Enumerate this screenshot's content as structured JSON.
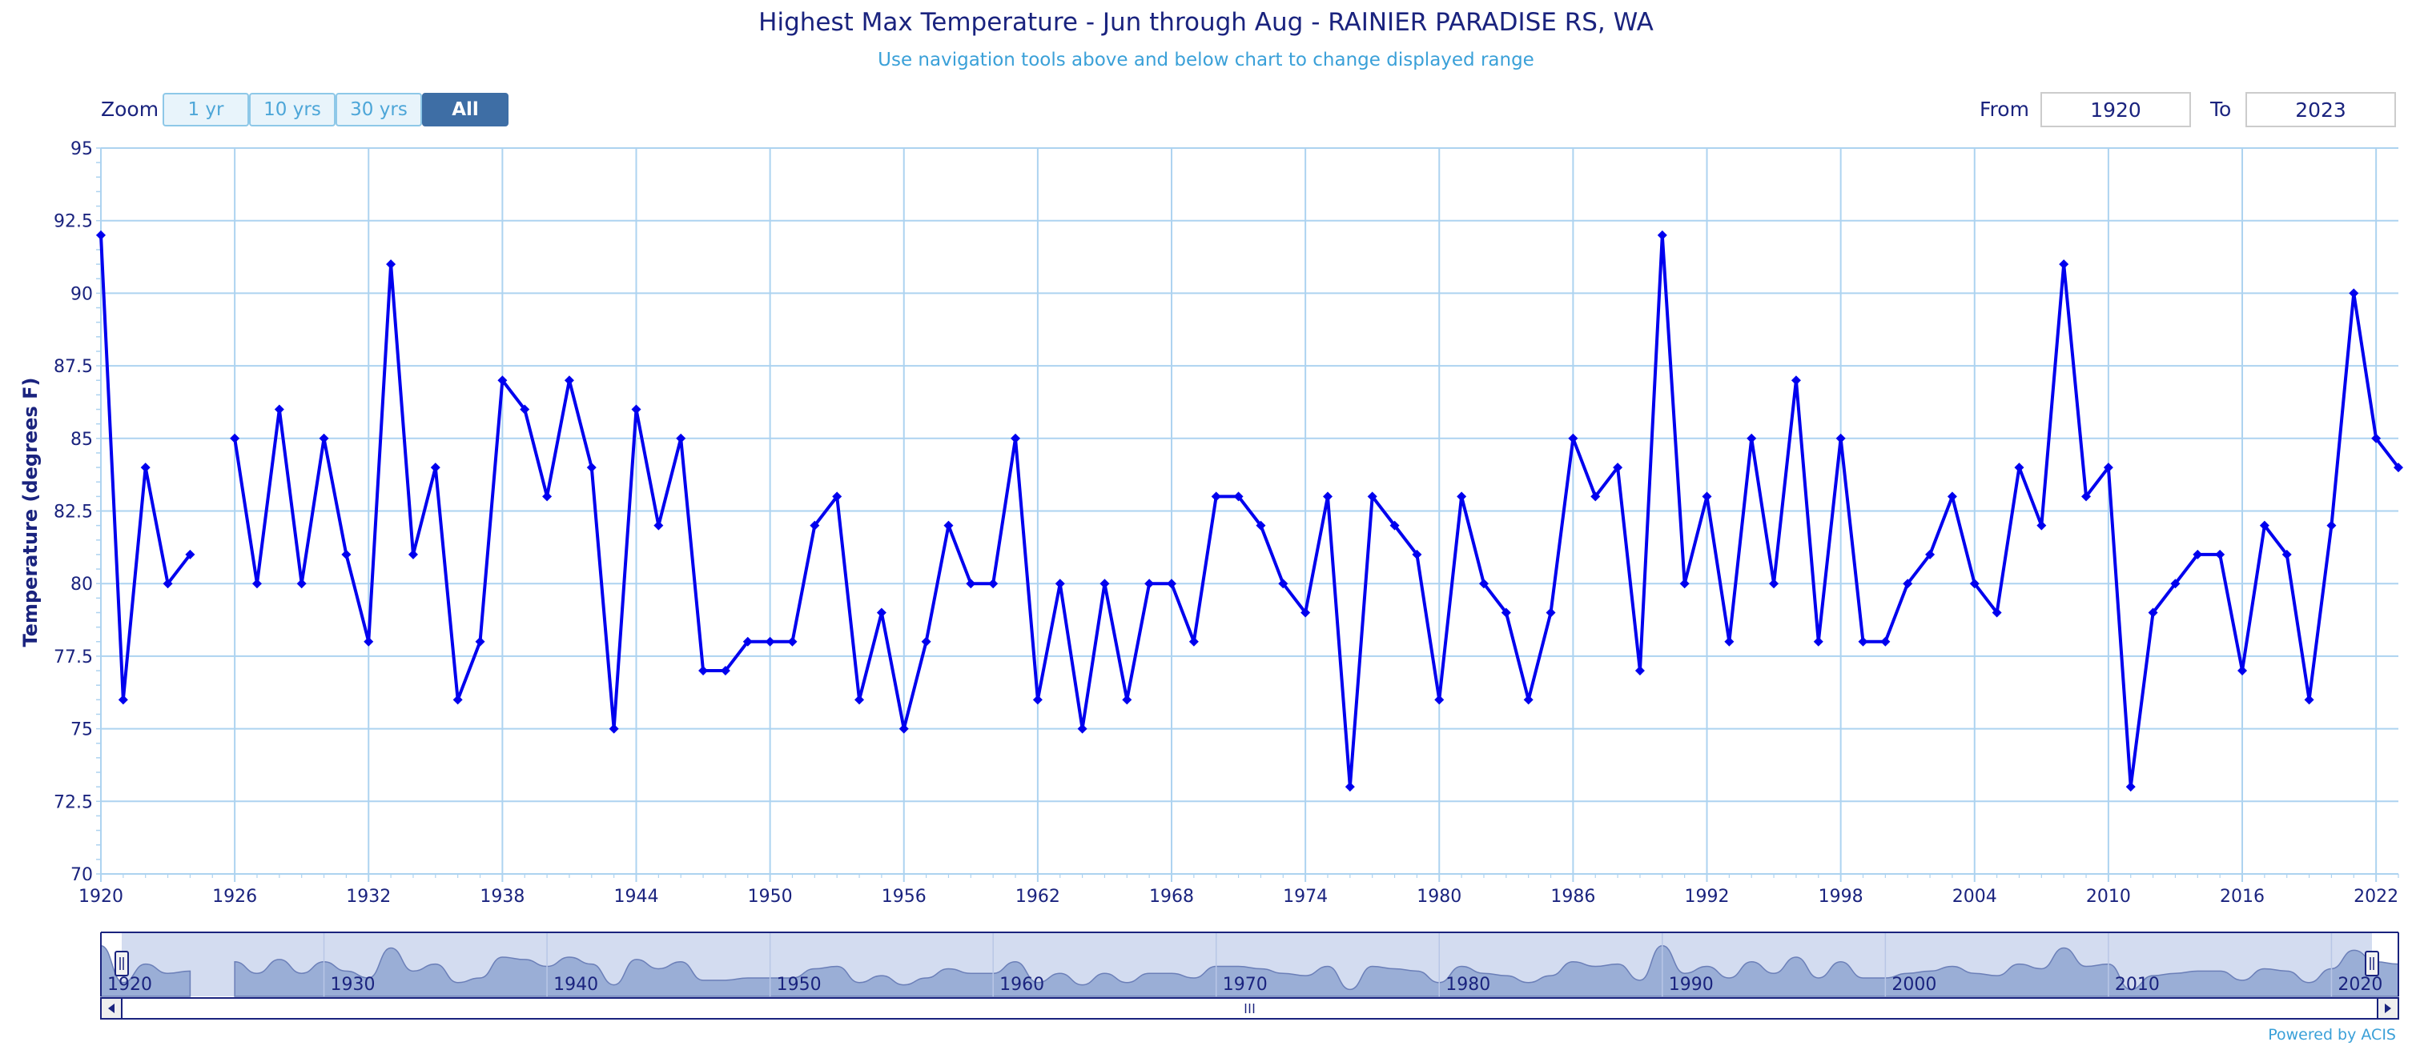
{
  "header": {
    "title": "Highest Max Temperature - Jun through Aug - RAINIER PARADISE RS, WA",
    "subtitle": "Use navigation tools above and below chart to change displayed range"
  },
  "zoom": {
    "label": "Zoom",
    "buttons": [
      "1 yr",
      "10 yrs",
      "30 yrs",
      "All"
    ],
    "active": "All"
  },
  "range": {
    "from_label": "From",
    "from_value": "1920",
    "to_label": "To",
    "to_value": "2023"
  },
  "footer": {
    "powered": "Powered by ACIS"
  },
  "colors": {
    "line": "#0000ee",
    "grid": "#add3f0",
    "text": "#1a237e",
    "navigator_fill": "#9aaed6",
    "navigator_mask": "#d3dcf0"
  },
  "chart_data": {
    "type": "line",
    "title": "Highest Max Temperature - Jun through Aug - RAINIER PARADISE RS, WA",
    "subtitle": "Use navigation tools above and below chart to change displayed range",
    "ylabel": "Temperature (degrees F)",
    "xlabel": "",
    "ylim": [
      70,
      95
    ],
    "xlim": [
      1920,
      2023
    ],
    "yticks": [
      "70",
      "72.5",
      "75",
      "77.5",
      "80",
      "82.5",
      "85",
      "87.5",
      "90",
      "92.5",
      "95"
    ],
    "xticks": [
      "1920",
      "1926",
      "1932",
      "1938",
      "1944",
      "1950",
      "1956",
      "1962",
      "1968",
      "1974",
      "1980",
      "1986",
      "1992",
      "1998",
      "2004",
      "2010",
      "2016",
      "2022"
    ],
    "grid": true,
    "navigator_ticks": [
      "1920",
      "1930",
      "1940",
      "1950",
      "1960",
      "1970",
      "1980",
      "1990",
      "2000",
      "2010",
      "2020"
    ],
    "series": [
      {
        "x": [
          1920,
          1921,
          1922,
          1923,
          1924,
          1925,
          1926,
          1927,
          1928,
          1929,
          1930,
          1931,
          1932,
          1933,
          1934,
          1935,
          1936,
          1937,
          1938,
          1939,
          1940,
          1941,
          1942,
          1943,
          1944,
          1945,
          1946,
          1947,
          1948,
          1949,
          1950,
          1951,
          1952,
          1953,
          1954,
          1955,
          1956,
          1957,
          1958,
          1959,
          1960,
          1961,
          1962,
          1963,
          1964,
          1965,
          1966,
          1967,
          1968,
          1969,
          1970,
          1971,
          1972,
          1973,
          1974,
          1975,
          1976,
          1977,
          1978,
          1979,
          1980,
          1981,
          1982,
          1983,
          1984,
          1985,
          1986,
          1987,
          1988,
          1989,
          1990,
          1991,
          1992,
          1993,
          1994,
          1995,
          1996,
          1997,
          1998,
          1999,
          2000,
          2001,
          2002,
          2003,
          2004,
          2005,
          2006,
          2007,
          2008,
          2009,
          2010,
          2011,
          2012,
          2013,
          2014,
          2015,
          2016,
          2017,
          2018,
          2019,
          2020,
          2021,
          2022,
          2023
        ],
        "y": [
          92,
          76,
          84,
          80,
          81,
          null,
          85,
          80,
          86,
          80,
          85,
          81,
          78,
          91,
          81,
          84,
          76,
          78,
          87,
          86,
          83,
          87,
          84,
          75,
          86,
          82,
          85,
          77,
          77,
          78,
          78,
          78,
          82,
          83,
          76,
          79,
          75,
          78,
          82,
          80,
          80,
          85,
          76,
          80,
          75,
          80,
          76,
          80,
          80,
          78,
          83,
          83,
          82,
          80,
          79,
          83,
          73,
          83,
          82,
          81,
          76,
          83,
          80,
          79,
          76,
          79,
          85,
          83,
          84,
          77,
          92,
          80,
          83,
          78,
          85,
          80,
          87,
          78,
          85,
          78,
          78,
          80,
          81,
          83,
          80,
          79,
          84,
          82,
          91,
          83,
          84,
          73,
          79,
          80,
          81,
          81,
          77,
          82,
          81,
          76,
          82,
          90,
          85,
          84
        ]
      }
    ]
  }
}
